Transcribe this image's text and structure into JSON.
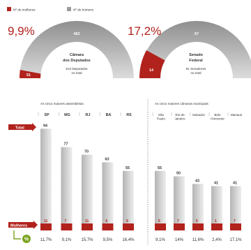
{
  "legend": {
    "women_label": "Nº de mulheres",
    "men_label": "Nº de homens",
    "women_color": "#b1221c",
    "men_color": "#9c9c9c"
  },
  "chambers": [
    {
      "pct": "9,9%",
      "name": [
        "Câmara",
        "dos Deputados"
      ],
      "total_lines": [
        "513 Deputados",
        "no total"
      ],
      "women": 51,
      "men": 462
    },
    {
      "pct": "17,2%",
      "name": [
        "Senado",
        "Federal"
      ],
      "total_lines": [
        "81 Senadores",
        "no total"
      ],
      "women": 14,
      "men": 67
    }
  ],
  "labels": {
    "total_tag": "Total",
    "mulheres_tag": "Mulheres",
    "assemblies_title": "As cinco maiores assembleias",
    "chambers_title": "As cinco maiores câmaras municipais"
  },
  "chart_data": [
    {
      "type": "bar",
      "title": "As cinco maiores assembleias",
      "categories": [
        "SP",
        "MG",
        "RJ",
        "BA",
        "RS"
      ],
      "series": [
        {
          "name": "Total",
          "values": [
            94,
            77,
            70,
            63,
            55
          ]
        },
        {
          "name": "Mulheres",
          "values": [
            11,
            7,
            11,
            6,
            9
          ]
        }
      ],
      "percent_women": [
        "11,7%",
        "9,1%",
        "15,7%",
        "9,5%",
        "16,4%"
      ]
    },
    {
      "type": "bar",
      "title": "As cinco maiores câmaras municipais",
      "categories": [
        [
          "São",
          "Paulo"
        ],
        [
          "Rio de",
          "Janeiro"
        ],
        [
          "Salvador"
        ],
        [
          "Belo",
          "Horizonte"
        ],
        [
          "Manaus"
        ]
      ],
      "series": [
        {
          "name": "Total",
          "values": [
            55,
            50,
            43,
            41,
            41
          ]
        },
        {
          "name": "Mulheres",
          "values": [
            5,
            7,
            5,
            1,
            7
          ]
        }
      ],
      "percent_women": [
        "9,1%",
        "14%",
        "11,6%",
        "2,4%",
        "17,1%"
      ]
    }
  ]
}
